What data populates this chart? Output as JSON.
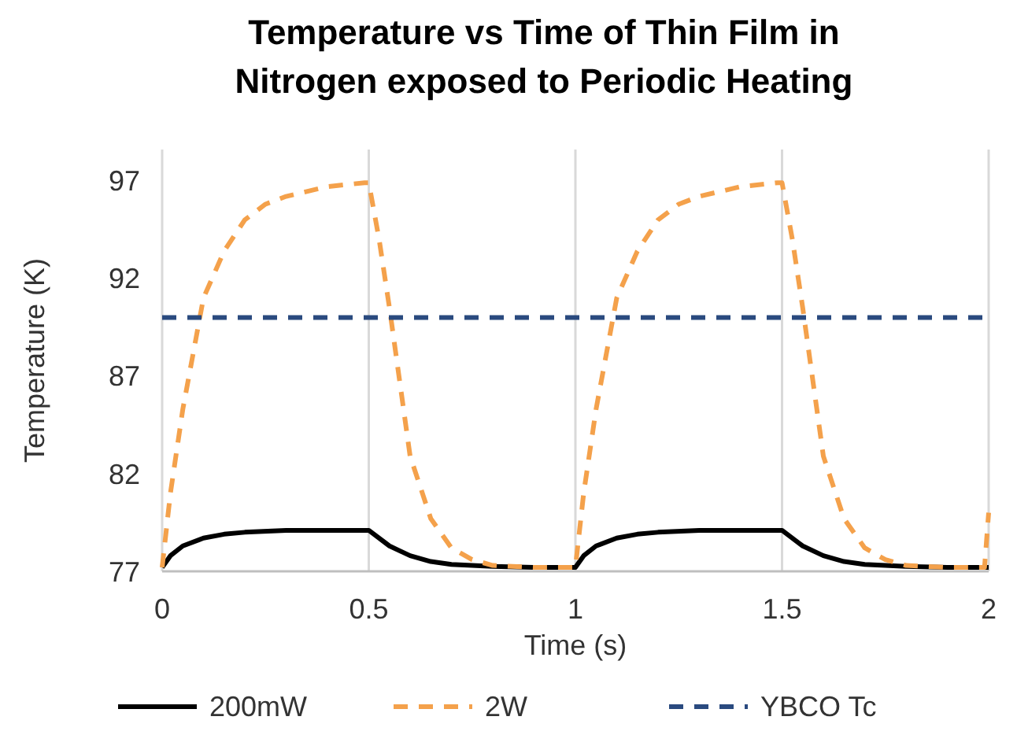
{
  "chart_data": {
    "type": "line",
    "title": "Temperature vs Time of Thin Film in Nitrogen exposed to Periodic Heating",
    "xlabel": "Time (s)",
    "ylabel": "Temperature (K)",
    "xlim": [
      0,
      2
    ],
    "xticks": [
      0,
      0.5,
      1,
      1.5,
      2
    ],
    "ylim": [
      77,
      98.6
    ],
    "yticks": [
      77,
      82,
      87,
      92,
      97
    ],
    "grid": "x",
    "legend": "bottom",
    "series": [
      {
        "name": "200mW",
        "color": "#000000",
        "line_style": "solid",
        "x": [
          0,
          0.02,
          0.05,
          0.1,
          0.15,
          0.2,
          0.3,
          0.4,
          0.49,
          0.5,
          0.55,
          0.6,
          0.65,
          0.7,
          0.8,
          0.9,
          0.99,
          1,
          1.02,
          1.05,
          1.1,
          1.15,
          1.2,
          1.3,
          1.4,
          1.49,
          1.5,
          1.55,
          1.6,
          1.65,
          1.7,
          1.8,
          1.9,
          1.99,
          2
        ],
        "values": [
          77.2,
          77.8,
          78.3,
          78.7,
          78.9,
          79.0,
          79.1,
          79.1,
          79.1,
          79.1,
          78.3,
          77.8,
          77.5,
          77.35,
          77.25,
          77.2,
          77.2,
          77.2,
          77.8,
          78.3,
          78.7,
          78.9,
          79.0,
          79.1,
          79.1,
          79.1,
          79.1,
          78.3,
          77.8,
          77.5,
          77.35,
          77.25,
          77.2,
          77.2,
          77.2
        ]
      },
      {
        "name": "2W",
        "color": "#f4a14b",
        "line_style": "dashed",
        "x": [
          0,
          0.02,
          0.05,
          0.1,
          0.15,
          0.2,
          0.25,
          0.3,
          0.4,
          0.49,
          0.5,
          0.525,
          0.55,
          0.6,
          0.65,
          0.7,
          0.75,
          0.8,
          0.9,
          0.99,
          1,
          1.02,
          1.05,
          1.1,
          1.15,
          1.2,
          1.25,
          1.3,
          1.4,
          1.49,
          1.5,
          1.525,
          1.55,
          1.6,
          1.65,
          1.7,
          1.75,
          1.8,
          1.9,
          1.99,
          2
        ],
        "values": [
          77.2,
          81,
          85.3,
          91,
          93.4,
          95,
          95.8,
          96.2,
          96.7,
          96.9,
          96.9,
          94,
          90.5,
          82.9,
          79.7,
          78.2,
          77.6,
          77.3,
          77.2,
          77.2,
          77.2,
          81,
          85.3,
          91,
          93.4,
          95,
          95.8,
          96.2,
          96.7,
          96.9,
          96.9,
          94,
          90.5,
          82.9,
          79.7,
          78.2,
          77.6,
          77.3,
          77.2,
          77.2,
          80
        ]
      },
      {
        "name": "YBCO Tc",
        "color": "#2a4a7f",
        "line_style": "dashed",
        "x": [
          0,
          2
        ],
        "values": [
          90,
          90
        ]
      }
    ]
  }
}
